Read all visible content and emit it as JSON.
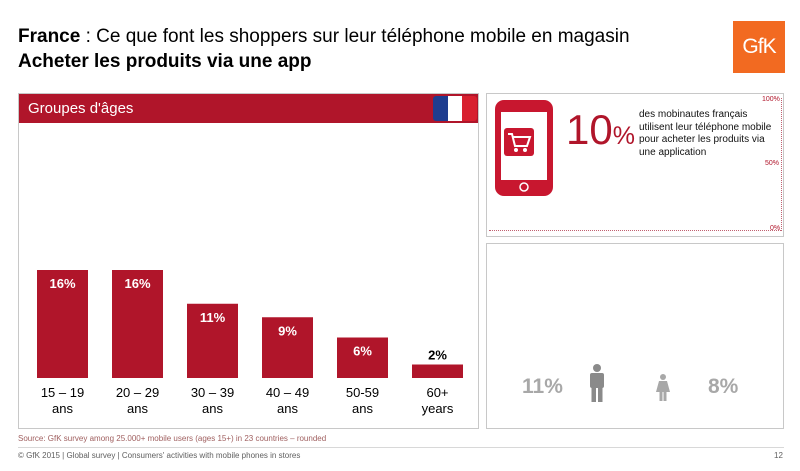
{
  "header": {
    "title_bold": "France",
    "title_rest": " : Ce que font les shoppers sur leur téléphone mobile en magasin",
    "subtitle": "Acheter les produits via une app",
    "logo_text": "GfK"
  },
  "age_panel": {
    "label": "Groupes d'âges",
    "flag_colors": [
      "#1e3d8f",
      "#ffffff",
      "#d8202f"
    ]
  },
  "chart_data": {
    "type": "bar",
    "title": "Groupes d'âges",
    "categories": [
      [
        "15 – 19",
        "ans"
      ],
      [
        "20 – 29",
        "ans"
      ],
      [
        "30 – 39",
        "ans"
      ],
      [
        "40 – 49",
        "ans"
      ],
      [
        "50-59",
        "ans"
      ],
      [
        "60+",
        "years"
      ]
    ],
    "values": [
      16,
      16,
      11,
      9,
      6,
      2
    ],
    "value_labels": [
      "16%",
      "16%",
      "11%",
      "9%",
      "6%",
      "2%"
    ],
    "ylim": [
      0,
      40
    ],
    "bar_color": "#b0152a",
    "grid": false,
    "xlabel": "",
    "ylabel": ""
  },
  "summary": {
    "percent_number": "10",
    "percent_sign": "%",
    "percent_value": 10,
    "description": "des mobinautes français utilisent leur téléphone mobile pour acheter les produits via une application",
    "scale_labels": [
      "100%",
      "50%",
      "0%"
    ],
    "phone_icon": "mobile-shopping-cart-icon"
  },
  "gender": {
    "male_value": "11%",
    "female_value": "8%",
    "male_icon": "male-figure-icon",
    "female_icon": "female-figure-icon"
  },
  "footer": {
    "source": "Source: GfK survey among 25.000+ mobile users (ages 15+) in 23 countries – rounded",
    "copyright": "© GfK 2015 | Global survey | Consumers' activities with mobile phones in stores",
    "page": "12"
  },
  "colors": {
    "accent": "#b0152a",
    "gfk_orange": "#f26a21",
    "muted": "#a8a8a8"
  }
}
